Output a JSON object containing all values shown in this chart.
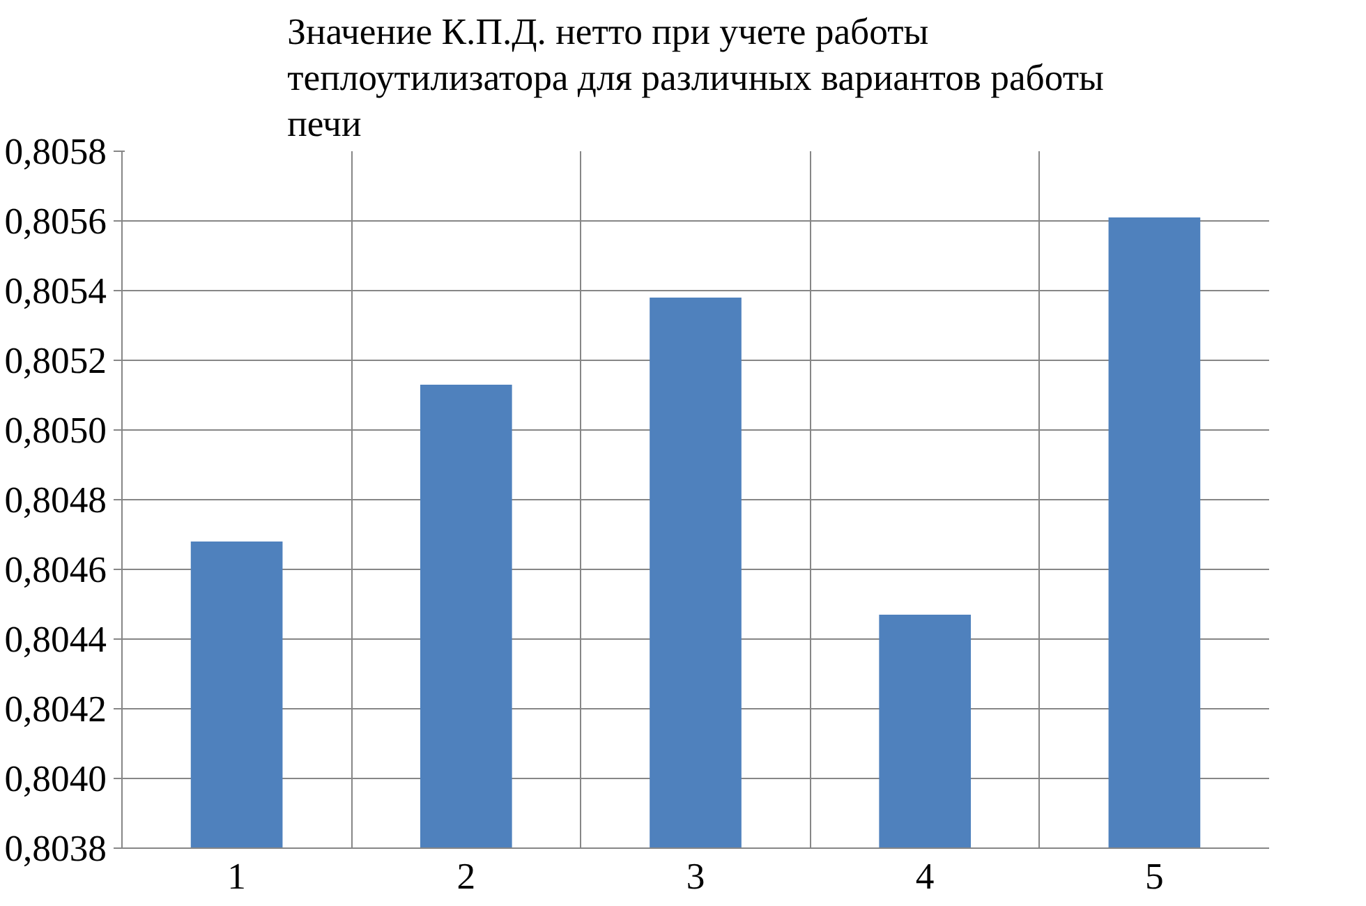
{
  "chart_data": {
    "type": "bar",
    "title": "Значение К.П.Д. нетто при учете работы теплоутилизатора для различных вариантов работы печи",
    "categories": [
      "1",
      "2",
      "3",
      "4",
      "5"
    ],
    "values": [
      0.80468,
      0.80513,
      0.80538,
      0.80447,
      0.80561
    ],
    "color": "#4f81bd",
    "ylim": [
      0.8038,
      0.8058
    ],
    "yticks": [
      {
        "value": 0.8038,
        "label": "0,8038"
      },
      {
        "value": 0.804,
        "label": "0,8040"
      },
      {
        "value": 0.8042,
        "label": "0,8042"
      },
      {
        "value": 0.8044,
        "label": "0,8044"
      },
      {
        "value": 0.8046,
        "label": "0,8046"
      },
      {
        "value": 0.8048,
        "label": "0,8048"
      },
      {
        "value": 0.805,
        "label": "0,8050"
      },
      {
        "value": 0.8052,
        "label": "0,8052"
      },
      {
        "value": 0.8054,
        "label": "0,8054"
      },
      {
        "value": 0.8056,
        "label": "0,8056"
      },
      {
        "value": 0.8058,
        "label": "0,8058"
      }
    ],
    "grid": true
  }
}
